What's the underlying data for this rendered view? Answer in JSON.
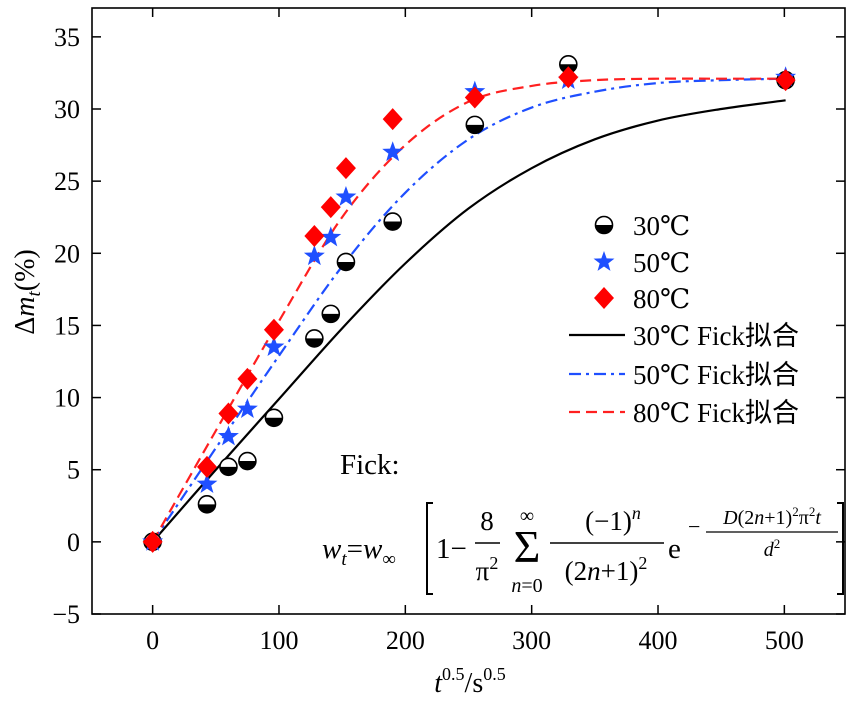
{
  "chart_data": {
    "type": "scatter",
    "title": "",
    "xlabel": "t^0.5/s^0.5",
    "ylabel": "Δm_t(%)",
    "xlim": [
      -48,
      548
    ],
    "ylim": [
      -5,
      37
    ],
    "x_ticks": [
      "0",
      "100",
      "200",
      "300",
      "400",
      "500"
    ],
    "y_ticks": [
      "−5",
      "0",
      "5",
      "10",
      "15",
      "20",
      "25",
      "30",
      "35"
    ],
    "grid": false,
    "legend_position": "right",
    "series": [
      {
        "name": "30℃",
        "kind": "points",
        "marker": "half-filled-circle",
        "color": "#000000",
        "x": [
          0,
          43,
          60,
          75,
          96,
          128,
          141,
          153,
          190,
          255,
          329,
          501
        ],
        "y": [
          0,
          2.6,
          5.2,
          5.6,
          8.6,
          14.1,
          15.8,
          19.4,
          22.2,
          28.9,
          33.1,
          32.0
        ]
      },
      {
        "name": "50℃",
        "kind": "points",
        "marker": "star",
        "color": "#1f4fff",
        "x": [
          0,
          43,
          60,
          75,
          96,
          128,
          141,
          153,
          190,
          255,
          329,
          501
        ],
        "y": [
          0,
          4.0,
          7.3,
          9.2,
          13.5,
          19.8,
          21.1,
          23.9,
          27.0,
          31.2,
          32.0,
          32.2
        ]
      },
      {
        "name": "80℃",
        "kind": "points",
        "marker": "diamond",
        "color": "#ff0000",
        "x": [
          0,
          43,
          60,
          75,
          96,
          128,
          141,
          153,
          190,
          255,
          329,
          501
        ],
        "y": [
          0,
          5.2,
          8.9,
          11.3,
          14.7,
          21.2,
          23.2,
          25.9,
          29.3,
          30.8,
          32.2,
          32.0
        ]
      },
      {
        "name": "30℃ Fick拟合",
        "kind": "line",
        "dash": "solid",
        "color": "#000000",
        "x": [
          0,
          50,
          100,
          150,
          200,
          250,
          300,
          350,
          400,
          450,
          501
        ],
        "y": [
          0,
          5.0,
          9.9,
          14.8,
          19.3,
          23.1,
          25.9,
          27.9,
          29.2,
          30.0,
          30.6
        ]
      },
      {
        "name": "50℃ Fick拟合",
        "kind": "line",
        "dash": "dash-dot",
        "color": "#1f4fff",
        "x": [
          0,
          50,
          100,
          150,
          200,
          250,
          300,
          350,
          400,
          450,
          501
        ],
        "y": [
          0,
          6.5,
          12.9,
          19.1,
          24.2,
          27.9,
          30.1,
          31.2,
          31.8,
          32.0,
          32.1
        ]
      },
      {
        "name": "80℃ Fick拟合",
        "kind": "line",
        "dash": "dashed",
        "color": "#ff2020",
        "x": [
          0,
          50,
          100,
          150,
          200,
          250,
          300,
          350,
          400,
          450,
          501
        ],
        "y": [
          0,
          7.7,
          15.3,
          22.5,
          27.5,
          30.5,
          31.6,
          32.0,
          32.1,
          32.1,
          32.1
        ]
      }
    ],
    "annotations": {
      "fick_label": "Fick:",
      "equation": {
        "lhs": "wt=w∞",
        "one_minus": "1−",
        "coef_num": "8",
        "coef_den": "π2",
        "sum_top": "∞",
        "sum_bottom": "n=0",
        "frac_num": "(−1)n",
        "frac_den": "(2n+1)2",
        "exp_base": "e",
        "exp_num": "D(2n+1)2π2t",
        "exp_den": "d2"
      }
    }
  }
}
